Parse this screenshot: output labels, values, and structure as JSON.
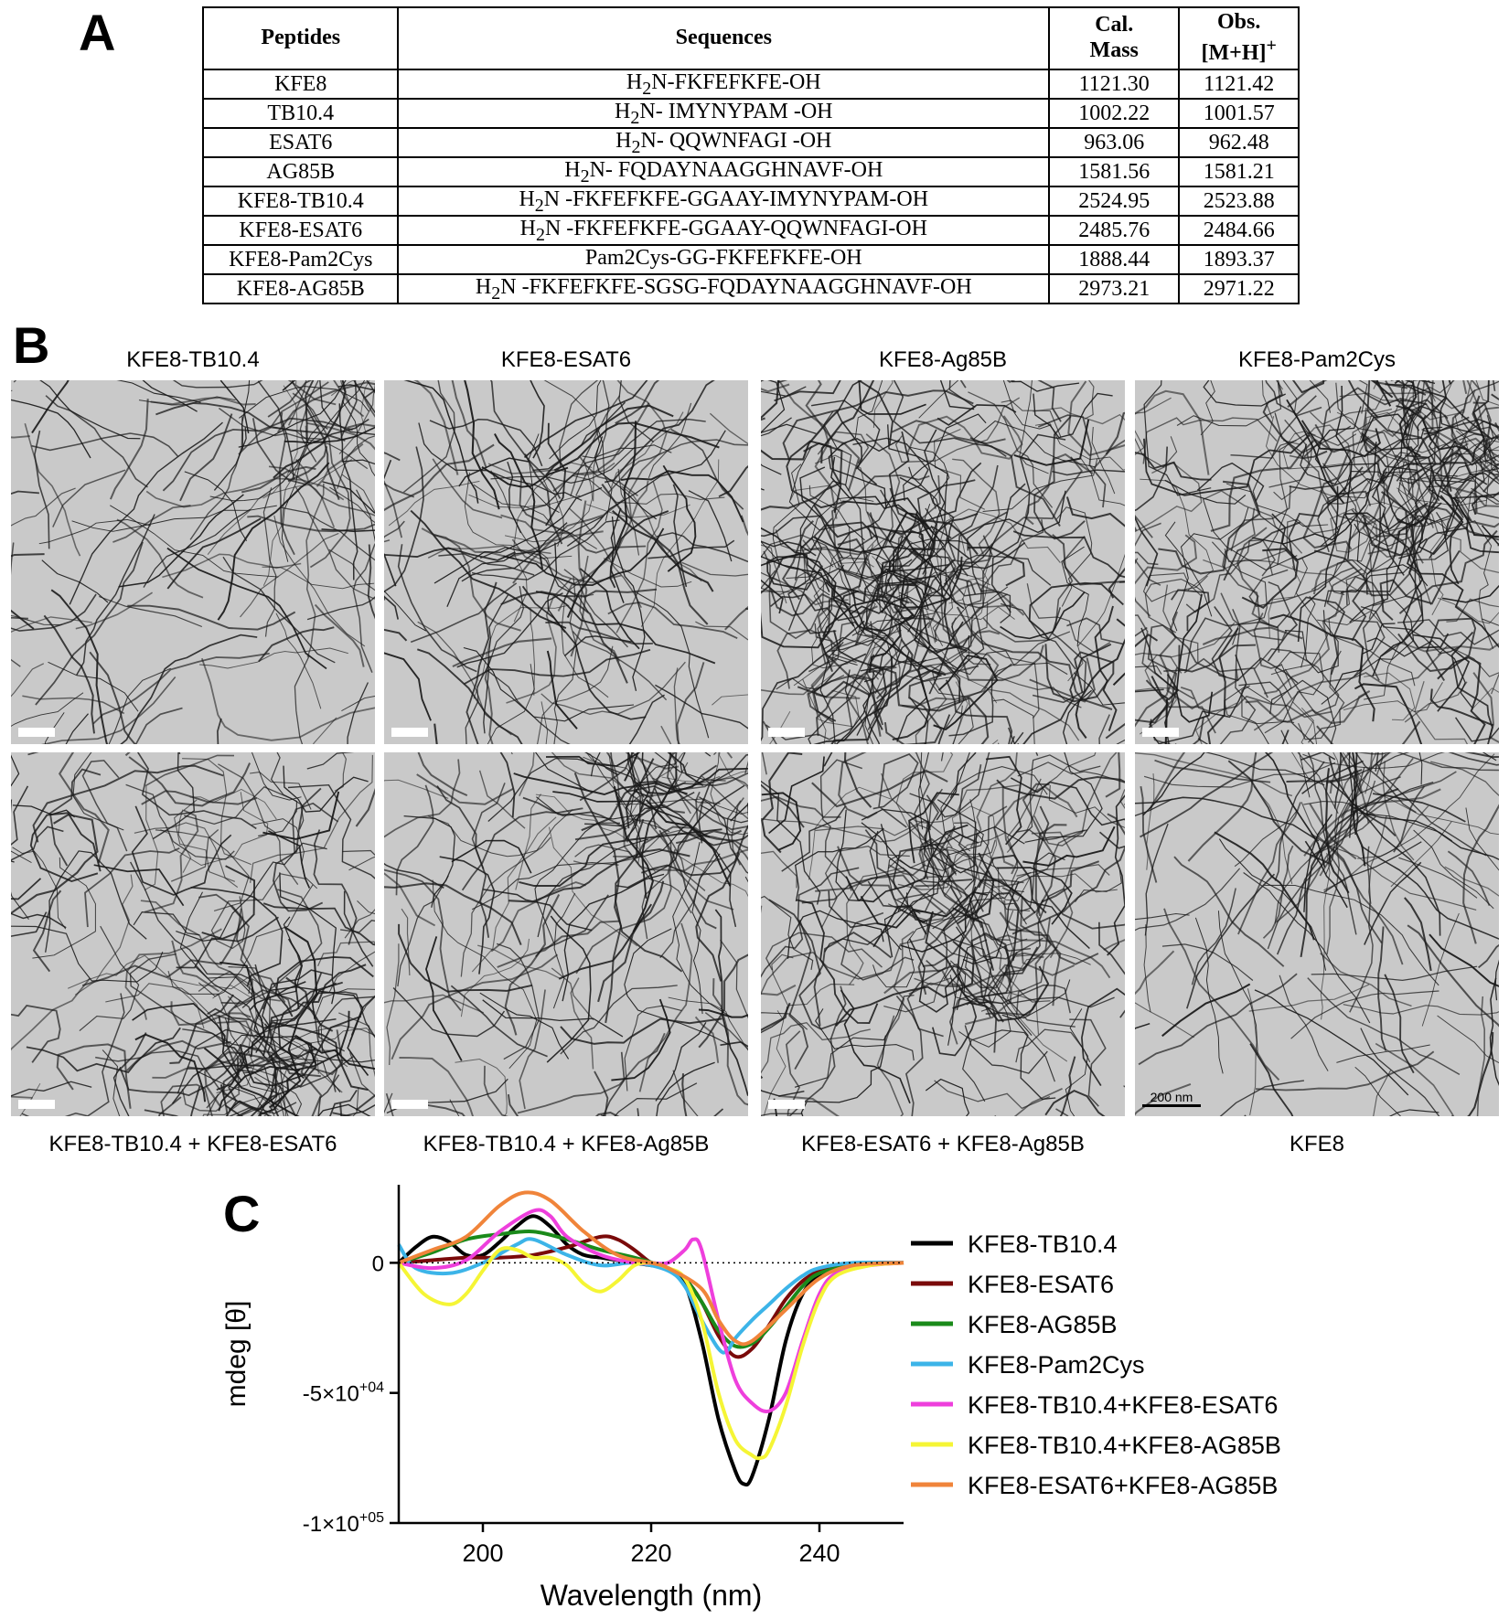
{
  "panels": {
    "a": "A",
    "b": "B",
    "c": "C"
  },
  "table": {
    "headers": {
      "peptides": "Peptides",
      "sequences": "Sequences",
      "cal_line1": "Cal.",
      "cal_line2": "Mass",
      "obs_line1": "Obs.",
      "obs_line2": "[M+H]",
      "obs_sup": "+"
    },
    "rows": [
      {
        "peptide": "KFE8",
        "seq_prefix": "H",
        "seq_sub": "2",
        "seq_rest": "N-FKFEFKFE-OH",
        "cal": "1121.30",
        "obs": "1121.42"
      },
      {
        "peptide": "TB10.4",
        "seq_prefix": "H",
        "seq_sub": "2",
        "seq_rest": "N- IMYNYPAM -OH",
        "cal": "1002.22",
        "obs": "1001.57"
      },
      {
        "peptide": "ESAT6",
        "seq_prefix": "H",
        "seq_sub": "2",
        "seq_rest": "N- QQWNFAGI -OH",
        "cal": "963.06",
        "obs": "962.48"
      },
      {
        "peptide": "AG85B",
        "seq_prefix": "H",
        "seq_sub": "2",
        "seq_rest": "N- FQDAYNAAGGHNAVF-OH",
        "cal": "1581.56",
        "obs": "1581.21"
      },
      {
        "peptide": "KFE8-TB10.4",
        "seq_prefix": "H",
        "seq_sub": "2",
        "seq_rest": "N -FKFEFKFE-GGAAY-IMYNYPAM-OH",
        "cal": "2524.95",
        "obs": "2523.88"
      },
      {
        "peptide": "KFE8-ESAT6",
        "seq_prefix": "H",
        "seq_sub": "2",
        "seq_rest": "N -FKFEFKFE-GGAAY-QQWNFAGI-OH",
        "cal": "2485.76",
        "obs": "2484.66"
      },
      {
        "peptide": "KFE8-Pam2Cys",
        "seq_prefix": "",
        "seq_sub": "",
        "seq_rest": "Pam2Cys-GG-FKFEFKFE-OH",
        "cal": "1888.44",
        "obs": "1893.37"
      },
      {
        "peptide": "KFE8-AG85B",
        "seq_prefix": "H",
        "seq_sub": "2",
        "seq_rest": "N -FKFEFKFE-SGSG-FQDAYNAAGGHNAVF-OH",
        "cal": "2973.21",
        "obs": "2971.22"
      }
    ]
  },
  "micrographs": {
    "top_captions": [
      "KFE8-TB10.4",
      "KFE8-ESAT6",
      "KFE8-Ag85B",
      "KFE8-Pam2Cys"
    ],
    "bottom_captions": [
      "KFE8-TB10.4 + KFE8-ESAT6",
      "KFE8-TB10.4 + KFE8-Ag85B",
      "KFE8-ESAT6 + KFE8-Ag85B",
      "KFE8"
    ],
    "scale_label": "200 nm"
  },
  "chart_data": {
    "type": "line",
    "xlabel": "Wavelength (nm)",
    "ylabel": "mdeg [θ]",
    "xlim": [
      190,
      250
    ],
    "ylim": [
      -100000,
      30000
    ],
    "xticks": [
      200,
      220,
      240
    ],
    "yticks": [
      {
        "value": 0,
        "label": "0"
      },
      {
        "value": -50000,
        "label_base": "-5×10",
        "label_exp": "+04"
      },
      {
        "value": -100000,
        "label_base": "-1×10",
        "label_exp": "+05"
      }
    ],
    "zero_line": "dotted",
    "legend_position": "right",
    "series": [
      {
        "name": "KFE8-TB10.4",
        "color": "#000000",
        "x": [
          190,
          192,
          194,
          196,
          198,
          200,
          202,
          204,
          206,
          208,
          210,
          212,
          214,
          216,
          218,
          220,
          222,
          224,
          226,
          228,
          230,
          231,
          232,
          234,
          236,
          238,
          240,
          242,
          244,
          246,
          250
        ],
        "y": [
          0,
          6000,
          10000,
          8000,
          3000,
          3000,
          8000,
          14000,
          18000,
          14000,
          7000,
          3000,
          2000,
          1000,
          0,
          -1000,
          -2000,
          -8000,
          -30000,
          -60000,
          -80000,
          -85000,
          -82000,
          -60000,
          -30000,
          -12000,
          -5000,
          -2000,
          -1000,
          0,
          0
        ]
      },
      {
        "name": "KFE8-ESAT6",
        "color": "#7a0a0a",
        "x": [
          190,
          194,
          198,
          202,
          206,
          210,
          214,
          216,
          218,
          220,
          222,
          224,
          226,
          228,
          230,
          232,
          234,
          236,
          238,
          240,
          242,
          246,
          250
        ],
        "y": [
          0,
          1000,
          2000,
          2000,
          3000,
          6000,
          10000,
          9000,
          5000,
          0,
          -2000,
          -6000,
          -15000,
          -28000,
          -36000,
          -33000,
          -24000,
          -14000,
          -7000,
          -3000,
          -1000,
          0,
          0
        ]
      },
      {
        "name": "KFE8-AG85B",
        "color": "#1a8a1a",
        "x": [
          190,
          194,
          198,
          202,
          206,
          210,
          214,
          218,
          222,
          224,
          226,
          228,
          230,
          232,
          234,
          236,
          238,
          240,
          244,
          250
        ],
        "y": [
          0,
          4000,
          9000,
          11000,
          12000,
          9000,
          5000,
          2000,
          -2000,
          -6000,
          -15000,
          -26000,
          -32000,
          -31000,
          -25000,
          -17000,
          -9000,
          -4000,
          -1000,
          0
        ]
      },
      {
        "name": "KFE8-Pam2Cys",
        "color": "#3cb4e8",
        "x": [
          190,
          192,
          196,
          200,
          204,
          206,
          210,
          214,
          218,
          222,
          224,
          226,
          228,
          229,
          230,
          232,
          234,
          236,
          238,
          240,
          244,
          250
        ],
        "y": [
          7000,
          -2000,
          -4000,
          0,
          7000,
          9000,
          3000,
          -1000,
          0,
          -3000,
          -9000,
          -22000,
          -33000,
          -34000,
          -29000,
          -22000,
          -16000,
          -10000,
          -5000,
          -2000,
          0,
          0
        ]
      },
      {
        "name": "KFE8-TB10.4+KFE8-ESAT6",
        "color": "#ee3fdc",
        "x": [
          190,
          194,
          198,
          202,
          206,
          208,
          210,
          214,
          218,
          220,
          222,
          224,
          225,
          226,
          228,
          230,
          232,
          234,
          236,
          238,
          240,
          242,
          246,
          250
        ],
        "y": [
          0,
          -2000,
          1000,
          12000,
          20000,
          18000,
          10000,
          3000,
          0,
          0,
          0,
          5000,
          9000,
          5000,
          -22000,
          -45000,
          -54000,
          -57000,
          -50000,
          -30000,
          -12000,
          -4000,
          -1000,
          0
        ]
      },
      {
        "name": "KFE8-TB10.4+KFE8-AG85B",
        "color": "#f5f535",
        "x": [
          190,
          193,
          196,
          198,
          200,
          202,
          204,
          206,
          208,
          210,
          212,
          214,
          216,
          218,
          220,
          222,
          224,
          226,
          228,
          230,
          232,
          233,
          234,
          236,
          238,
          240,
          242,
          246,
          250
        ],
        "y": [
          0,
          -12000,
          -16000,
          -12000,
          -3000,
          5000,
          5000,
          2000,
          2000,
          -1000,
          -8000,
          -11000,
          -7000,
          -1000,
          0,
          -2000,
          -6000,
          -22000,
          -50000,
          -68000,
          -74000,
          -75000,
          -72000,
          -55000,
          -32000,
          -14000,
          -5000,
          -1000,
          0
        ]
      },
      {
        "name": "KFE8-ESAT6+KFE8-AG85B",
        "color": "#f0843a",
        "x": [
          190,
          194,
          198,
          202,
          205,
          208,
          212,
          216,
          220,
          222,
          226,
          228,
          230,
          232,
          236,
          240,
          244,
          250
        ],
        "y": [
          0,
          5000,
          10000,
          22000,
          27000,
          24000,
          12000,
          3000,
          0,
          -2000,
          -10000,
          -22000,
          -30000,
          -30000,
          -18000,
          -6000,
          -1000,
          0
        ]
      }
    ]
  }
}
